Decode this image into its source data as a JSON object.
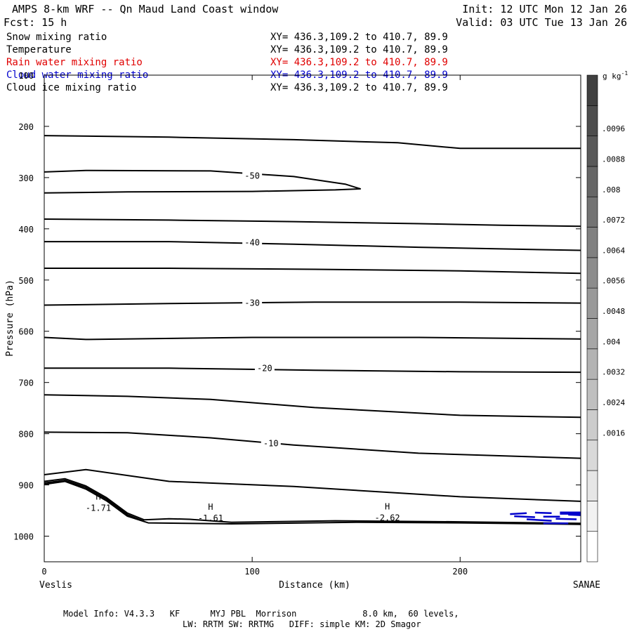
{
  "header": {
    "title": "AMPS 8-km WRF -- Qn Maud Land Coast window",
    "forecast": "Fcst:   15 h",
    "init": "Init: 12 UTC Mon 12 Jan 26",
    "valid": "Valid: 03 UTC Tue 13 Jan 26"
  },
  "fields": [
    {
      "name": "Snow mixing ratio",
      "xy": "XY= 436.3,109.2 to 410.7, 89.9",
      "color": "#000000"
    },
    {
      "name": "Temperature",
      "xy": "XY= 436.3,109.2 to 410.7, 89.9",
      "color": "#000000"
    },
    {
      "name": "Rain water mixing ratio",
      "xy": "XY= 436.3,109.2 to 410.7, 89.9",
      "color": "#e00000"
    },
    {
      "name": "Cloud water mixing ratio",
      "xy": "XY= 436.3,109.2 to 410.7, 89.9",
      "color": "#0000cc"
    },
    {
      "name": "Cloud ice mixing ratio",
      "xy": "XY= 436.3,109.2 to 410.7, 89.9",
      "color": "#000000"
    }
  ],
  "footer": {
    "line1": "Model Info: V4.3.3   KF      MYJ PBL  Morrison             8.0 km,  60 levels,",
    "line2": "LW: RRTM SW: RRTMG   DIFF: simple KM: 2D Smagor"
  },
  "colorbar": {
    "unit_base": "g kg",
    "unit_exp": "-1",
    "labels": [
      ".0096",
      ".0088",
      ".008",
      ".0072",
      ".0064",
      ".0056",
      ".0048",
      ".004",
      ".0032",
      ".0024",
      ".0016"
    ],
    "gray_shades": [
      "#ffffff",
      "#f2f2f2",
      "#e6e6e6",
      "#d9d9d9",
      "#cccccc",
      "#bfbfbf",
      "#b3b3b3",
      "#a6a6a6",
      "#999999",
      "#8c8c8c",
      "#808080",
      "#737373",
      "#666666",
      "#595959",
      "#4d4d4d",
      "#404040"
    ]
  },
  "chart_data": {
    "type": "line",
    "title": "AMPS 8-km WRF -- Qn Maud Land Coast window",
    "xlabel": "Distance (km)",
    "ylabel": "Pressure (hPa)",
    "xlim": [
      0,
      258
    ],
    "ylim": [
      1050,
      100
    ],
    "x_ticks": [
      0,
      100,
      200
    ],
    "y_ticks": [
      100,
      200,
      300,
      400,
      500,
      600,
      700,
      800,
      900,
      1000
    ],
    "x_end_labels": {
      "left": "Veslis",
      "right": "SANAE"
    },
    "isotherms": [
      {
        "name": "isotherm-a",
        "label": "",
        "points": [
          [
            0,
            218
          ],
          [
            60,
            221
          ],
          [
            120,
            226
          ],
          [
            170,
            232
          ],
          [
            200,
            243
          ],
          [
            258,
            243
          ]
        ]
      },
      {
        "name": "isotherm-b",
        "label": "-50",
        "label_at": [
          100,
          297
        ],
        "points": [
          [
            0,
            289
          ],
          [
            20,
            286
          ],
          [
            80,
            287
          ],
          [
            120,
            298
          ],
          [
            145,
            313
          ],
          [
            152,
            322
          ],
          [
            140,
            324
          ],
          [
            100,
            327
          ],
          [
            40,
            328
          ],
          [
            0,
            330
          ]
        ]
      },
      {
        "name": "isotherm-c",
        "label": "",
        "points": [
          [
            0,
            381
          ],
          [
            60,
            383
          ],
          [
            120,
            386
          ],
          [
            180,
            390
          ],
          [
            220,
            393
          ],
          [
            258,
            395
          ]
        ]
      },
      {
        "name": "isotherm-d",
        "label": "-40",
        "label_at": [
          100,
          427
        ],
        "points": [
          [
            0,
            425
          ],
          [
            60,
            425
          ],
          [
            120,
            430
          ],
          [
            180,
            436
          ],
          [
            230,
            440
          ],
          [
            258,
            442
          ]
        ]
      },
      {
        "name": "isotherm-e",
        "label": "",
        "points": [
          [
            0,
            477
          ],
          [
            60,
            477
          ],
          [
            130,
            479
          ],
          [
            200,
            482
          ],
          [
            258,
            487
          ]
        ]
      },
      {
        "name": "isotherm-f",
        "label": "-30",
        "label_at": [
          100,
          545
        ],
        "points": [
          [
            0,
            549
          ],
          [
            60,
            546
          ],
          [
            130,
            543
          ],
          [
            200,
            543
          ],
          [
            258,
            545
          ]
        ]
      },
      {
        "name": "isotherm-g",
        "label": "",
        "points": [
          [
            0,
            612
          ],
          [
            20,
            616
          ],
          [
            100,
            612
          ],
          [
            180,
            612
          ],
          [
            258,
            615
          ]
        ]
      },
      {
        "name": "isotherm-h",
        "label": "-20",
        "label_at": [
          106,
          672
        ],
        "points": [
          [
            0,
            672
          ],
          [
            60,
            672
          ],
          [
            130,
            676
          ],
          [
            200,
            679
          ],
          [
            258,
            680
          ]
        ]
      },
      {
        "name": "isotherm-i",
        "label": "",
        "points": [
          [
            0,
            724
          ],
          [
            40,
            727
          ],
          [
            80,
            733
          ],
          [
            130,
            749
          ],
          [
            200,
            764
          ],
          [
            258,
            768
          ]
        ]
      },
      {
        "name": "isotherm-j",
        "label": "-10",
        "label_at": [
          109,
          819
        ],
        "points": [
          [
            0,
            797
          ],
          [
            40,
            798
          ],
          [
            80,
            808
          ],
          [
            120,
            822
          ],
          [
            180,
            838
          ],
          [
            258,
            848
          ]
        ]
      },
      {
        "name": "isotherm-k",
        "label": "",
        "points": [
          [
            0,
            880
          ],
          [
            20,
            870
          ],
          [
            60,
            893
          ],
          [
            120,
            903
          ],
          [
            200,
            923
          ],
          [
            258,
            932
          ]
        ]
      },
      {
        "name": "isotherm-l",
        "label": "",
        "points": [
          [
            0,
            893
          ],
          [
            10,
            888
          ],
          [
            20,
            902
          ],
          [
            30,
            925
          ],
          [
            40,
            955
          ],
          [
            48,
            968
          ],
          [
            60,
            966
          ],
          [
            70,
            967
          ],
          [
            90,
            973
          ],
          [
            140,
            970
          ],
          [
            200,
            972
          ],
          [
            258,
            975
          ]
        ]
      },
      {
        "name": "isotherm-m",
        "label": "",
        "points": [
          [
            0,
            896
          ],
          [
            10,
            891
          ],
          [
            20,
            905
          ],
          [
            30,
            928
          ],
          [
            40,
            958
          ],
          [
            48,
            971
          ]
        ]
      },
      {
        "name": "isotherm-n",
        "label": "",
        "points": [
          [
            0,
            899
          ],
          [
            10,
            893
          ],
          [
            20,
            908
          ],
          [
            30,
            931
          ],
          [
            40,
            961
          ],
          [
            50,
            974
          ],
          [
            90,
            976
          ],
          [
            150,
            973
          ],
          [
            200,
            974
          ],
          [
            258,
            977
          ]
        ]
      }
    ],
    "highs": [
      {
        "name": "high-1",
        "symbol": "H",
        "value": "-1.71",
        "x": 26,
        "y": 937
      },
      {
        "name": "high-2",
        "symbol": "H",
        "value": "-1.61",
        "x": 80,
        "y": 957
      },
      {
        "name": "high-3",
        "symbol": "H",
        "value": "-2.62",
        "x": 165,
        "y": 956
      }
    ],
    "cloud_water": {
      "color": "#0000cc",
      "dashes": [
        [
          [
            224,
            957
          ],
          [
            232,
            955
          ]
        ],
        [
          [
            236,
            954
          ],
          [
            244,
            955
          ]
        ],
        [
          [
            226,
            961
          ],
          [
            236,
            963
          ]
        ],
        [
          [
            240,
            962
          ],
          [
            248,
            962
          ]
        ],
        [
          [
            232,
            967
          ],
          [
            244,
            970
          ]
        ],
        [
          [
            246,
            966
          ],
          [
            256,
            967
          ]
        ],
        [
          [
            240,
            975
          ],
          [
            252,
            975
          ]
        ],
        [
          [
            252,
            958
          ],
          [
            258,
            959
          ]
        ]
      ],
      "blocks": [
        [
          [
            248,
            952
          ],
          [
            258,
            958
          ]
        ]
      ]
    }
  }
}
